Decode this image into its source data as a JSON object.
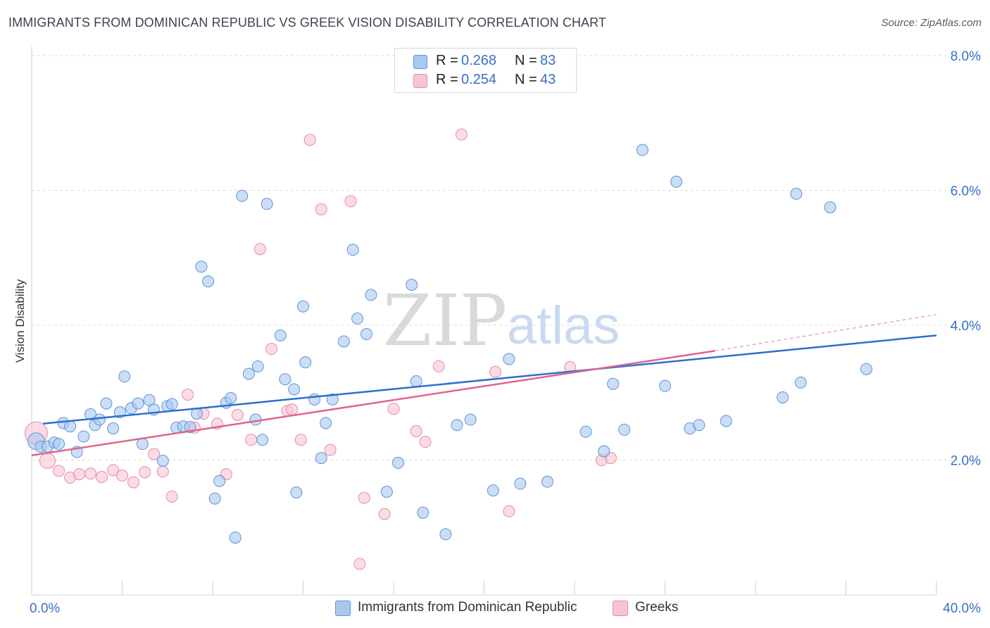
{
  "header": {
    "title": "IMMIGRANTS FROM DOMINICAN REPUBLIC VS GREEK VISION DISABILITY CORRELATION CHART",
    "source": "Source: ZipAtlas.com"
  },
  "watermark": {
    "zip": "ZIP",
    "atlas": "atlas"
  },
  "legend": {
    "rows": [
      {
        "r_label": "R = ",
        "r_value": "0.268",
        "n_label": "N = ",
        "n_value": "83"
      },
      {
        "r_label": "R = ",
        "r_value": "0.254",
        "n_label": "N = ",
        "n_value": "43"
      }
    ]
  },
  "bottom_legend": {
    "blue_label": "Immigrants from Dominican Republic",
    "pink_label": "Greeks"
  },
  "chart_data": {
    "type": "scatter",
    "title": "IMMIGRANTS FROM DOMINICAN REPUBLIC VS GREEK VISION DISABILITY CORRELATION CHART",
    "xlabel": "",
    "ylabel": "Vision Disability",
    "xlim": [
      0,
      40
    ],
    "ylim": [
      0,
      8
    ],
    "x_tick_labels": [
      "0.0%",
      "40.0%"
    ],
    "y_tick_labels": [
      "2.0%",
      "4.0%",
      "6.0%",
      "8.0%"
    ],
    "y_ticks": [
      2,
      4,
      6,
      8
    ],
    "grid": "horizontal dashed",
    "legend_position": "top-center",
    "colors": {
      "blue_fill": "#a9c8f0",
      "blue_stroke": "#5f93d8",
      "blue_line": "#2f6fcf",
      "pink_fill": "#f8c4d4",
      "pink_stroke": "#e88aa6",
      "pink_line": "#e0648e",
      "tick_label": "#3a6fc4"
    },
    "series": [
      {
        "name": "Immigrants from Dominican Republic",
        "color": "#a9c8f0",
        "trend": {
          "x": [
            0.5,
            40
          ],
          "y": [
            2.54,
            3.85
          ]
        },
        "points": [
          {
            "x": 0.2,
            "y": 2.28
          },
          {
            "x": 0.4,
            "y": 2.2
          },
          {
            "x": 0.7,
            "y": 2.2
          },
          {
            "x": 1.0,
            "y": 2.26
          },
          {
            "x": 1.2,
            "y": 2.24
          },
          {
            "x": 1.4,
            "y": 2.55
          },
          {
            "x": 1.7,
            "y": 2.5
          },
          {
            "x": 2.0,
            "y": 2.12
          },
          {
            "x": 2.3,
            "y": 2.35
          },
          {
            "x": 2.6,
            "y": 2.68
          },
          {
            "x": 2.8,
            "y": 2.52
          },
          {
            "x": 3.0,
            "y": 2.6
          },
          {
            "x": 3.3,
            "y": 2.84
          },
          {
            "x": 3.6,
            "y": 2.47
          },
          {
            "x": 3.9,
            "y": 2.71
          },
          {
            "x": 4.1,
            "y": 3.24
          },
          {
            "x": 4.4,
            "y": 2.77
          },
          {
            "x": 4.7,
            "y": 2.84
          },
          {
            "x": 4.9,
            "y": 2.24
          },
          {
            "x": 5.2,
            "y": 2.89
          },
          {
            "x": 5.4,
            "y": 2.75
          },
          {
            "x": 5.8,
            "y": 1.99
          },
          {
            "x": 6.0,
            "y": 2.8
          },
          {
            "x": 6.2,
            "y": 2.83
          },
          {
            "x": 6.4,
            "y": 2.48
          },
          {
            "x": 6.7,
            "y": 2.5
          },
          {
            "x": 7.0,
            "y": 2.49
          },
          {
            "x": 7.3,
            "y": 2.69
          },
          {
            "x": 7.5,
            "y": 4.87
          },
          {
            "x": 7.8,
            "y": 4.65
          },
          {
            "x": 8.1,
            "y": 1.43
          },
          {
            "x": 8.3,
            "y": 1.69
          },
          {
            "x": 8.6,
            "y": 2.85
          },
          {
            "x": 8.8,
            "y": 2.92
          },
          {
            "x": 9.0,
            "y": 0.85
          },
          {
            "x": 9.3,
            "y": 5.92
          },
          {
            "x": 9.6,
            "y": 3.28
          },
          {
            "x": 10.0,
            "y": 3.39
          },
          {
            "x": 10.2,
            "y": 2.3
          },
          {
            "x": 10.4,
            "y": 5.8
          },
          {
            "x": 9.9,
            "y": 2.6
          },
          {
            "x": 11.0,
            "y": 3.85
          },
          {
            "x": 11.2,
            "y": 3.2
          },
          {
            "x": 11.6,
            "y": 3.05
          },
          {
            "x": 11.7,
            "y": 1.52
          },
          {
            "x": 12.0,
            "y": 4.28
          },
          {
            "x": 12.1,
            "y": 3.45
          },
          {
            "x": 12.5,
            "y": 2.9
          },
          {
            "x": 12.8,
            "y": 2.03
          },
          {
            "x": 13.0,
            "y": 2.55
          },
          {
            "x": 13.3,
            "y": 2.9
          },
          {
            "x": 13.8,
            "y": 3.76
          },
          {
            "x": 14.2,
            "y": 5.12
          },
          {
            "x": 14.4,
            "y": 4.1
          },
          {
            "x": 14.8,
            "y": 3.87
          },
          {
            "x": 15.0,
            "y": 4.45
          },
          {
            "x": 15.7,
            "y": 1.53
          },
          {
            "x": 16.2,
            "y": 1.96
          },
          {
            "x": 16.8,
            "y": 4.6
          },
          {
            "x": 17.0,
            "y": 3.17
          },
          {
            "x": 17.3,
            "y": 1.22
          },
          {
            "x": 18.3,
            "y": 0.9
          },
          {
            "x": 18.8,
            "y": 2.52
          },
          {
            "x": 19.4,
            "y": 2.6
          },
          {
            "x": 20.4,
            "y": 1.55
          },
          {
            "x": 21.1,
            "y": 3.5
          },
          {
            "x": 21.6,
            "y": 1.65
          },
          {
            "x": 22.8,
            "y": 1.68
          },
          {
            "x": 24.5,
            "y": 2.42
          },
          {
            "x": 25.3,
            "y": 2.13
          },
          {
            "x": 25.7,
            "y": 3.13
          },
          {
            "x": 26.2,
            "y": 2.45
          },
          {
            "x": 27.0,
            "y": 6.6
          },
          {
            "x": 28.0,
            "y": 3.1
          },
          {
            "x": 28.5,
            "y": 6.13
          },
          {
            "x": 29.1,
            "y": 2.47
          },
          {
            "x": 29.5,
            "y": 2.52
          },
          {
            "x": 30.7,
            "y": 2.58
          },
          {
            "x": 33.2,
            "y": 2.93
          },
          {
            "x": 33.8,
            "y": 5.95
          },
          {
            "x": 34.0,
            "y": 3.15
          },
          {
            "x": 35.3,
            "y": 5.75
          },
          {
            "x": 36.9,
            "y": 3.35
          }
        ]
      },
      {
        "name": "Greeks",
        "color": "#f8c4d4",
        "trend": {
          "x": [
            0,
            30.2
          ],
          "y": [
            2.07,
            3.62
          ]
        },
        "trend_dashed": {
          "x": [
            30.2,
            40
          ],
          "y": [
            3.62,
            4.16
          ]
        },
        "points": [
          {
            "x": 0.2,
            "y": 2.4
          },
          {
            "x": 0.7,
            "y": 1.99
          },
          {
            "x": 1.2,
            "y": 1.84
          },
          {
            "x": 1.7,
            "y": 1.74
          },
          {
            "x": 2.1,
            "y": 1.79
          },
          {
            "x": 2.6,
            "y": 1.8
          },
          {
            "x": 3.1,
            "y": 1.75
          },
          {
            "x": 3.6,
            "y": 1.85
          },
          {
            "x": 4.0,
            "y": 1.77
          },
          {
            "x": 4.5,
            "y": 1.67
          },
          {
            "x": 5.0,
            "y": 1.82
          },
          {
            "x": 5.4,
            "y": 2.09
          },
          {
            "x": 5.8,
            "y": 1.83
          },
          {
            "x": 6.2,
            "y": 1.46
          },
          {
            "x": 6.9,
            "y": 2.97
          },
          {
            "x": 7.2,
            "y": 2.48
          },
          {
            "x": 7.6,
            "y": 2.69
          },
          {
            "x": 8.2,
            "y": 2.54
          },
          {
            "x": 8.6,
            "y": 1.79
          },
          {
            "x": 9.1,
            "y": 2.67
          },
          {
            "x": 9.7,
            "y": 2.3
          },
          {
            "x": 10.1,
            "y": 5.13
          },
          {
            "x": 10.6,
            "y": 3.65
          },
          {
            "x": 11.3,
            "y": 2.73
          },
          {
            "x": 11.5,
            "y": 2.75
          },
          {
            "x": 11.9,
            "y": 2.3
          },
          {
            "x": 12.3,
            "y": 6.75
          },
          {
            "x": 12.8,
            "y": 5.72
          },
          {
            "x": 13.2,
            "y": 2.15
          },
          {
            "x": 14.1,
            "y": 5.84
          },
          {
            "x": 14.5,
            "y": 0.46
          },
          {
            "x": 14.7,
            "y": 1.44
          },
          {
            "x": 15.6,
            "y": 1.2
          },
          {
            "x": 16.0,
            "y": 2.76
          },
          {
            "x": 17.0,
            "y": 2.43
          },
          {
            "x": 17.4,
            "y": 2.27
          },
          {
            "x": 18.0,
            "y": 3.39
          },
          {
            "x": 19.0,
            "y": 6.83
          },
          {
            "x": 20.5,
            "y": 3.31
          },
          {
            "x": 21.1,
            "y": 1.24
          },
          {
            "x": 23.8,
            "y": 3.38
          },
          {
            "x": 25.2,
            "y": 2.0
          },
          {
            "x": 25.6,
            "y": 2.03
          }
        ]
      }
    ]
  }
}
